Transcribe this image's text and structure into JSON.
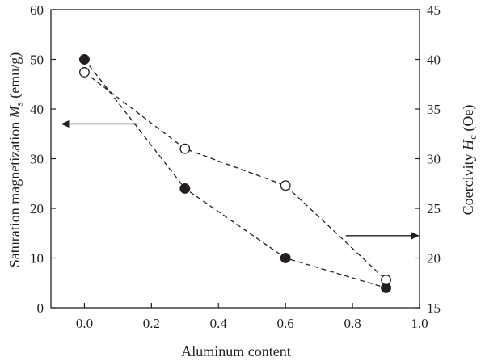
{
  "chart_data": {
    "type": "scatter",
    "x_axis": {
      "label": "Aluminum content",
      "range": [
        -0.1,
        1.0
      ],
      "ticks": [
        "0.0",
        "0.2",
        "0.4",
        "0.6",
        "0.8",
        "1.0"
      ],
      "tick_values": [
        0.0,
        0.2,
        0.4,
        0.6,
        0.8,
        1.0
      ]
    },
    "y_left": {
      "label": "Saturation magnetization M_s (emu/g)",
      "label_main": "Saturation magnetization ",
      "label_symbol": "M",
      "label_sub": "s",
      "label_unit": " (emu/g)",
      "range": [
        0,
        60
      ],
      "ticks": [
        "0",
        "10",
        "20",
        "30",
        "40",
        "50",
        "60"
      ],
      "tick_values": [
        0,
        10,
        20,
        30,
        40,
        50,
        60
      ]
    },
    "y_right": {
      "label": "Coercivity H_c (Oe)",
      "label_main": "Coercivity ",
      "label_symbol": "H",
      "label_sub": "c",
      "label_unit": " (Oe)",
      "range": [
        15,
        45
      ],
      "ticks": [
        "15",
        "20",
        "25",
        "30",
        "35",
        "40",
        "45"
      ],
      "tick_values": [
        15,
        20,
        25,
        30,
        35,
        40,
        45
      ]
    },
    "series": [
      {
        "marker": "filled-circle",
        "line": "dashed",
        "axis": "left",
        "x": [
          0.0,
          0.3,
          0.6,
          0.9
        ],
        "y": [
          50,
          24,
          10,
          4
        ]
      },
      {
        "marker": "open-circle",
        "line": "dashed",
        "axis": "right",
        "x": [
          0.0,
          0.3,
          0.6,
          0.9
        ],
        "y": [
          38.7,
          31.0,
          27.3,
          17.8
        ]
      }
    ],
    "annotations": [
      {
        "type": "arrow",
        "direction": "left",
        "meaning": "filled series uses left axis",
        "x_from": 0.16,
        "x_to": -0.07,
        "y_left": 37
      },
      {
        "type": "arrow",
        "direction": "right",
        "meaning": "open series uses right axis",
        "x_from": 0.78,
        "x_to": 1.0,
        "y_left": 14.5
      }
    ],
    "grid": false,
    "legend": "none"
  }
}
